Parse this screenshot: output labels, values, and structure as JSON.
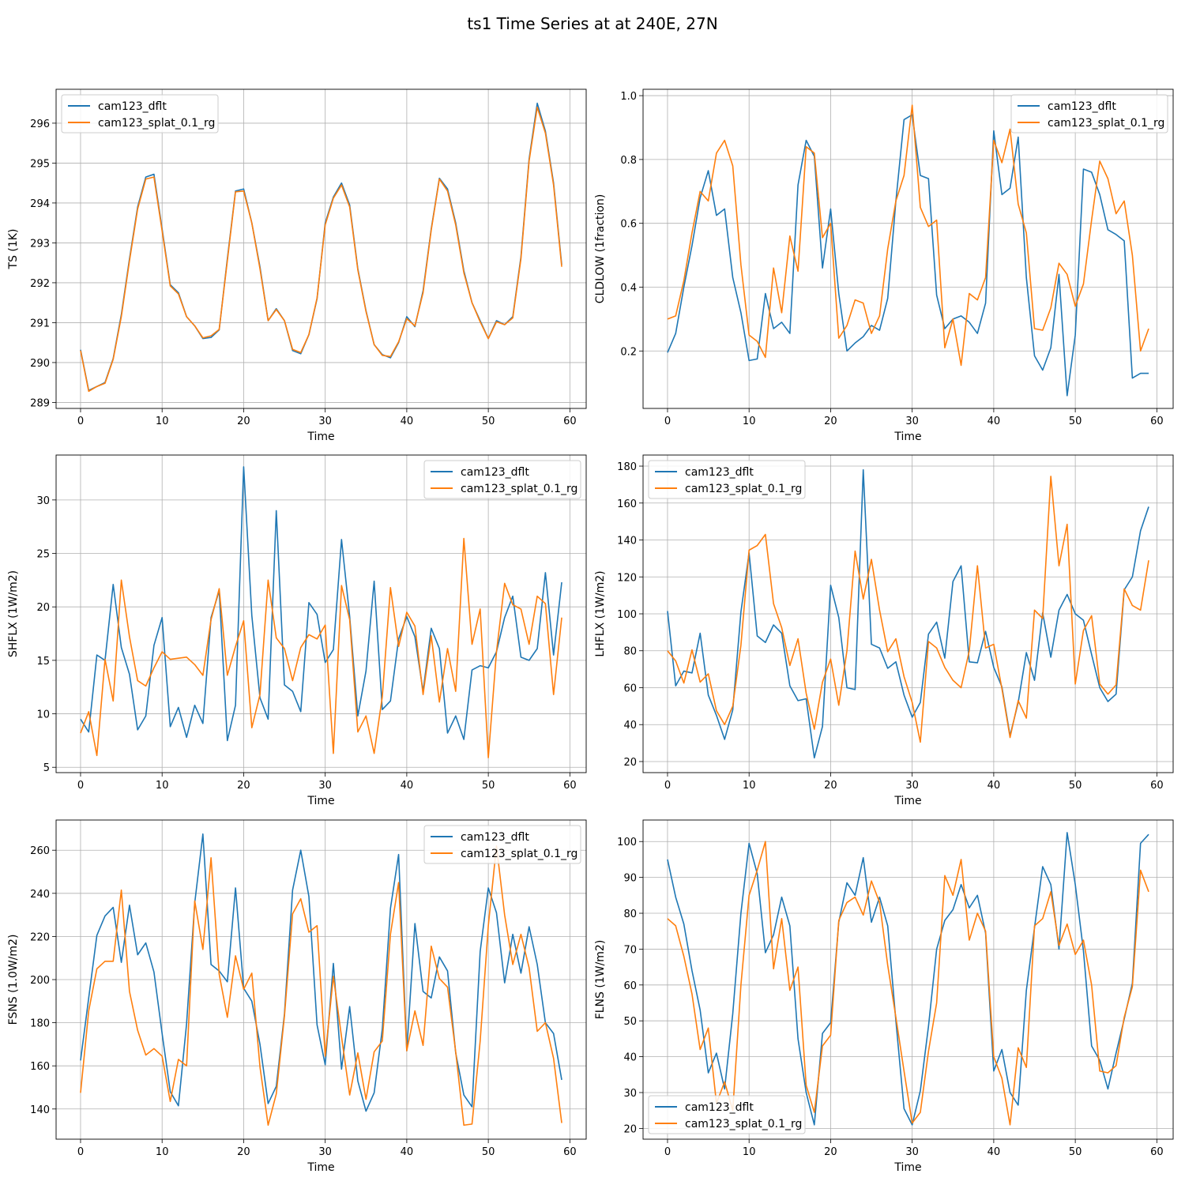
{
  "figure": {
    "title": "ts1 Time Series at at 240E, 27N",
    "colors": {
      "series1": "#1f77b4",
      "series2": "#ff7f0e",
      "grid": "#b0b0b0"
    }
  },
  "chart_data": [
    {
      "type": "line",
      "ylabel": "TS (1K)",
      "xlabel": "Time",
      "xlim": [
        -3,
        62
      ],
      "ylim": [
        288.85,
        296.85
      ],
      "xticks": [
        0,
        10,
        20,
        30,
        40,
        50,
        60
      ],
      "yticks": [
        289,
        290,
        291,
        292,
        293,
        294,
        295,
        296
      ],
      "legend_position": "top-left",
      "series": [
        {
          "name": "cam123_dflt",
          "values": [
            290.32,
            289.3,
            289.4,
            289.5,
            290.1,
            291.2,
            292.6,
            293.9,
            294.65,
            294.72,
            293.35,
            291.95,
            291.75,
            291.15,
            290.92,
            290.6,
            290.63,
            290.82,
            292.6,
            294.3,
            294.35,
            293.5,
            292.4,
            291.05,
            291.35,
            291.05,
            290.3,
            290.22,
            290.7,
            291.6,
            293.5,
            294.15,
            294.5,
            293.95,
            292.35,
            291.3,
            290.45,
            290.2,
            290.12,
            290.5,
            291.15,
            290.9,
            291.8,
            293.35,
            294.62,
            294.35,
            293.5,
            292.3,
            291.5,
            291.05,
            290.6,
            291.05,
            290.95,
            291.15,
            292.65,
            295.1,
            296.5,
            295.8,
            294.5,
            292.45
          ]
        },
        {
          "name": "cam123_splat_0.1_rg",
          "values": [
            290.3,
            289.28,
            289.4,
            289.48,
            290.08,
            291.15,
            292.55,
            293.85,
            294.6,
            294.65,
            293.3,
            291.92,
            291.72,
            291.15,
            290.92,
            290.62,
            290.67,
            290.83,
            292.55,
            294.28,
            294.3,
            293.5,
            292.35,
            291.05,
            291.33,
            291.05,
            290.33,
            290.25,
            290.7,
            291.62,
            293.45,
            294.12,
            294.45,
            293.9,
            292.32,
            291.28,
            290.45,
            290.18,
            290.15,
            290.52,
            291.1,
            290.92,
            291.75,
            293.32,
            294.6,
            294.3,
            293.45,
            292.25,
            291.5,
            291.02,
            290.6,
            291.02,
            290.95,
            291.12,
            292.6,
            295.05,
            296.4,
            295.75,
            294.45,
            292.4
          ]
        }
      ]
    },
    {
      "type": "line",
      "ylabel": "CLDLOW (1fraction)",
      "xlabel": "Time",
      "xlim": [
        -3,
        62
      ],
      "ylim": [
        0.02,
        1.02
      ],
      "xticks": [
        0,
        10,
        20,
        30,
        40,
        50,
        60
      ],
      "ytick_labels": [
        "0.2",
        "0.4",
        "0.6",
        "0.8",
        "1.0"
      ],
      "legend_position": "top-right",
      "series": [
        {
          "name": "cam123_dflt",
          "values": [
            0.195,
            0.255,
            0.4,
            0.53,
            0.68,
            0.765,
            0.625,
            0.645,
            0.43,
            0.32,
            0.17,
            0.175,
            0.38,
            0.27,
            0.29,
            0.255,
            0.72,
            0.86,
            0.81,
            0.46,
            0.645,
            0.38,
            0.2,
            0.225,
            0.245,
            0.28,
            0.265,
            0.365,
            0.67,
            0.925,
            0.94,
            0.75,
            0.74,
            0.375,
            0.27,
            0.3,
            0.31,
            0.29,
            0.255,
            0.35,
            0.89,
            0.69,
            0.71,
            0.87,
            0.43,
            0.185,
            0.14,
            0.21,
            0.44,
            0.06,
            0.25,
            0.77,
            0.76,
            0.69,
            0.58,
            0.565,
            0.545,
            0.115,
            0.13,
            0.13
          ]
        },
        {
          "name": "cam123_splat_0.1_rg",
          "values": [
            0.3,
            0.31,
            0.42,
            0.57,
            0.7,
            0.67,
            0.82,
            0.86,
            0.78,
            0.47,
            0.25,
            0.23,
            0.18,
            0.46,
            0.32,
            0.56,
            0.45,
            0.84,
            0.82,
            0.555,
            0.6,
            0.24,
            0.28,
            0.36,
            0.35,
            0.255,
            0.31,
            0.52,
            0.67,
            0.75,
            0.97,
            0.65,
            0.59,
            0.61,
            0.21,
            0.3,
            0.155,
            0.38,
            0.36,
            0.43,
            0.86,
            0.79,
            0.895,
            0.66,
            0.57,
            0.27,
            0.265,
            0.335,
            0.475,
            0.44,
            0.34,
            0.41,
            0.61,
            0.795,
            0.74,
            0.63,
            0.67,
            0.5,
            0.2,
            0.27
          ]
        }
      ]
    },
    {
      "type": "line",
      "ylabel": "SHFLX (1W/m2)",
      "xlabel": "Time",
      "xlim": [
        -3,
        62
      ],
      "ylim": [
        4.5,
        34.2
      ],
      "xticks": [
        0,
        10,
        20,
        30,
        40,
        50,
        60
      ],
      "yticks": [
        5,
        10,
        15,
        20,
        25,
        30
      ],
      "legend_position": "top-right",
      "series": [
        {
          "name": "cam123_dflt",
          "values": [
            9.5,
            8.3,
            15.5,
            15,
            22.1,
            16.2,
            13.7,
            8.5,
            9.8,
            16.4,
            19,
            8.8,
            10.6,
            7.8,
            10.8,
            9.1,
            19,
            21.5,
            7.5,
            10.8,
            33.1,
            19.2,
            11.5,
            9.5,
            29,
            12.7,
            12.1,
            10.2,
            20.4,
            19.3,
            14.8,
            16,
            26.3,
            19.1,
            9.8,
            14,
            22.4,
            10.4,
            11.2,
            17,
            19.1,
            17.2,
            12.1,
            18,
            16.1,
            8.2,
            9.8,
            7.6,
            14.1,
            14.5,
            14.3,
            15.8,
            19,
            21,
            15.3,
            15,
            16.1,
            23.2,
            15.5,
            22.3
          ]
        },
        {
          "name": "cam123_splat_0.1_rg",
          "values": [
            8.2,
            10.2,
            6.1,
            15.1,
            11.2,
            22.5,
            17.2,
            13.1,
            12.6,
            14.3,
            15.8,
            15.1,
            15.2,
            15.3,
            14.6,
            13.6,
            18.8,
            21.7,
            13.6,
            16.3,
            18.7,
            8.7,
            11.8,
            22.5,
            17.1,
            16.1,
            13.1,
            16.2,
            17.4,
            17,
            18.3,
            6.3,
            22,
            18.8,
            8.3,
            9.8,
            6.3,
            11.6,
            21.8,
            16.3,
            19.5,
            18.2,
            11.8,
            17.3,
            11.1,
            16.1,
            12.1,
            26.4,
            16.5,
            19.8,
            5.9,
            15.8,
            22.2,
            20.2,
            19.8,
            16.5,
            21,
            20.3,
            11.8,
            19
          ]
        }
      ]
    },
    {
      "type": "line",
      "ylabel": "LHFLX (1W/m2)",
      "xlabel": "Time",
      "xlim": [
        -3,
        62
      ],
      "ylim": [
        14,
        186
      ],
      "xticks": [
        0,
        10,
        20,
        30,
        40,
        50,
        60
      ],
      "yticks": [
        20,
        40,
        60,
        80,
        100,
        120,
        140,
        160,
        180
      ],
      "legend_position": "top-left",
      "series": [
        {
          "name": "cam123_dflt",
          "values": [
            101.5,
            61,
            69,
            68,
            89.5,
            56,
            45,
            32,
            48,
            101,
            133,
            88,
            84.5,
            94,
            89.5,
            61,
            53,
            54,
            22,
            39,
            115.5,
            98,
            60,
            59,
            178,
            83.5,
            81.5,
            70.5,
            74,
            56,
            44,
            52,
            89,
            95.5,
            76,
            117.5,
            126,
            74,
            73.5,
            90.5,
            71,
            60.5,
            34,
            52,
            79,
            64,
            100.5,
            76.5,
            102,
            110.5,
            100,
            96.5,
            78,
            60,
            52.5,
            56.5,
            113,
            120,
            145,
            158
          ]
        },
        {
          "name": "cam123_splat_0.1_rg",
          "values": [
            80,
            74.5,
            62.5,
            80.5,
            63,
            67.5,
            47.5,
            40,
            50,
            83,
            134.5,
            137,
            143,
            105.5,
            92.5,
            72,
            86.5,
            57,
            37.5,
            63,
            75.5,
            50.5,
            80,
            134,
            108,
            129.5,
            102,
            79.5,
            86.5,
            66,
            52,
            30.5,
            85,
            81.5,
            71,
            64,
            60,
            80,
            126,
            81.5,
            83.5,
            59.5,
            33,
            53,
            43.5,
            102,
            97.5,
            174.5,
            126,
            148.5,
            62,
            91,
            99,
            62,
            56.5,
            61.5,
            113.5,
            104.5,
            102,
            129
          ]
        }
      ]
    },
    {
      "type": "line",
      "ylabel": "FSNS (1.0W/m2)",
      "xlabel": "Time",
      "xlim": [
        -3,
        62
      ],
      "ylim": [
        126,
        274
      ],
      "xticks": [
        0,
        10,
        20,
        30,
        40,
        50,
        60
      ],
      "yticks": [
        140,
        160,
        180,
        200,
        220,
        240,
        260
      ],
      "legend_position": "top-right",
      "series": [
        {
          "name": "cam123_dflt",
          "values": [
            162.5,
            191.5,
            220.5,
            229.5,
            233.5,
            208,
            234.5,
            211.5,
            217,
            203.5,
            175,
            148,
            141.5,
            179.5,
            235.5,
            267.5,
            207,
            204,
            199,
            242.5,
            196,
            190,
            170,
            142.5,
            150.5,
            184,
            241.5,
            260,
            238.5,
            179,
            160.5,
            207.5,
            158.5,
            187.5,
            153,
            139,
            147.5,
            177,
            233,
            258,
            167,
            226,
            194.5,
            191.5,
            210.5,
            204,
            166,
            146.5,
            141,
            213,
            242.5,
            231,
            198.5,
            221,
            203,
            224.5,
            207,
            180,
            175,
            153.5
          ]
        },
        {
          "name": "cam123_splat_0.1_rg",
          "values": [
            147.5,
            185.5,
            205,
            208.5,
            208.5,
            241.5,
            194.5,
            176.5,
            165,
            168,
            164.5,
            143.5,
            163,
            160,
            236.5,
            214,
            256.5,
            202.5,
            182.5,
            211,
            195.5,
            203,
            159.5,
            132.5,
            147,
            183,
            230.5,
            237.5,
            222,
            225,
            164.5,
            201.5,
            173.5,
            146.5,
            166,
            144.5,
            166.5,
            171.5,
            221,
            245,
            167,
            185.5,
            169.5,
            215.5,
            200.5,
            196.5,
            166.5,
            132.5,
            133,
            171.5,
            225,
            262,
            230,
            207,
            221,
            205.5,
            176,
            180,
            163.5,
            133.5
          ]
        }
      ]
    },
    {
      "type": "line",
      "ylabel": "FLNS (1W/m2)",
      "xlabel": "Time",
      "xlim": [
        -3,
        62
      ],
      "ylim": [
        17,
        106
      ],
      "xticks": [
        0,
        10,
        20,
        30,
        40,
        50,
        60
      ],
      "yticks": [
        20,
        30,
        40,
        50,
        60,
        70,
        80,
        90,
        100
      ],
      "legend_position": "bottom-left",
      "series": [
        {
          "name": "cam123_dflt",
          "values": [
            95,
            84.5,
            77,
            64,
            53,
            35.5,
            41,
            31,
            52,
            80,
            99.5,
            91,
            69,
            74,
            84.5,
            76.5,
            45,
            30,
            21,
            46.5,
            49.5,
            77.5,
            88.5,
            85,
            95.5,
            77.5,
            84.5,
            76.5,
            50,
            25.5,
            21,
            30.5,
            48.5,
            70,
            78,
            81,
            88,
            81.5,
            85,
            74.5,
            36,
            42,
            30,
            26.5,
            58.5,
            76,
            93,
            88,
            70,
            102.5,
            88,
            69.5,
            43,
            39,
            31,
            41,
            50.5,
            60.5,
            99.5,
            102
          ]
        },
        {
          "name": "cam123_splat_0.1_rg",
          "values": [
            78.5,
            76.5,
            68,
            57.5,
            42,
            48,
            27,
            33,
            25,
            60,
            85,
            92,
            100,
            64.5,
            78.5,
            58.5,
            65,
            32,
            24.5,
            43,
            46,
            78,
            83,
            84.5,
            79.5,
            89,
            83,
            65.5,
            51,
            36,
            21.5,
            24.5,
            41.5,
            55,
            90.5,
            85,
            95,
            72.5,
            80,
            75,
            40,
            34,
            21,
            42.5,
            37,
            76.5,
            78.5,
            86,
            71,
            77,
            68.5,
            72.5,
            60,
            36,
            35.5,
            37.5,
            51,
            59.5,
            92,
            86
          ]
        }
      ]
    }
  ]
}
